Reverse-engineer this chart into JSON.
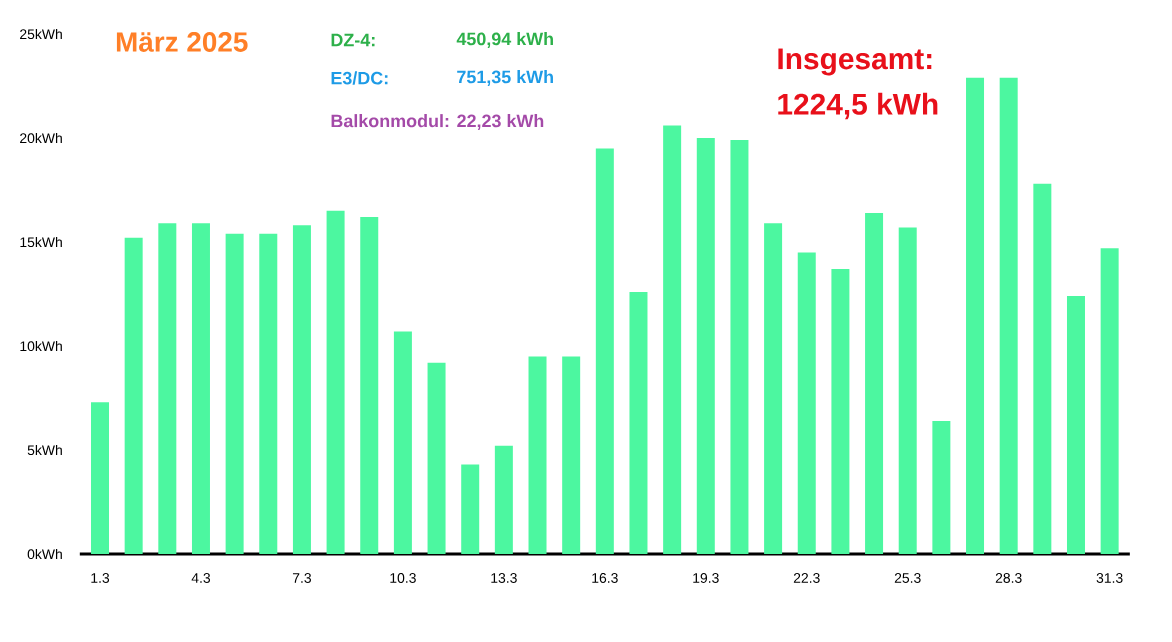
{
  "chart_data": {
    "type": "bar",
    "title": "März 2025",
    "annotations": [
      "DZ-4:",
      "450,94 kWh",
      "E3/DC:",
      "751,35 kWh",
      "Balkonmodul: 22,23 kWh",
      "Insgesamt:",
      "1224,5 kWh"
    ],
    "categories": [
      "1.3",
      null,
      null,
      "4.3",
      null,
      null,
      "7.3",
      null,
      null,
      "10.3",
      null,
      null,
      "13.3",
      null,
      null,
      "16.3",
      null,
      null,
      "19.3",
      null,
      null,
      "22.3",
      null,
      null,
      "25.3",
      null,
      null,
      "28.3",
      null,
      null,
      "31.3"
    ],
    "values": [
      7.3,
      15.2,
      15.9,
      15.9,
      15.4,
      15.4,
      15.8,
      16.5,
      16.2,
      10.7,
      9.2,
      4.3,
      5.2,
      9.5,
      9.5,
      19.5,
      12.6,
      20.6,
      20.0,
      19.9,
      15.9,
      14.5,
      13.7,
      16.4,
      15.7,
      6.4,
      22.9,
      22.9,
      17.8,
      12.4,
      14.7
    ],
    "color": "#4cf7a0",
    "ylim": [
      0,
      25
    ],
    "yticks": [
      {
        "value": 0,
        "label": "0kWh"
      },
      {
        "value": 5,
        "label": "5kWh"
      },
      {
        "value": 10,
        "label": "10kWh"
      },
      {
        "value": 15,
        "label": "15kWh"
      },
      {
        "value": 20,
        "label": "20kWh"
      },
      {
        "value": 25,
        "label": "25kWh"
      }
    ]
  }
}
